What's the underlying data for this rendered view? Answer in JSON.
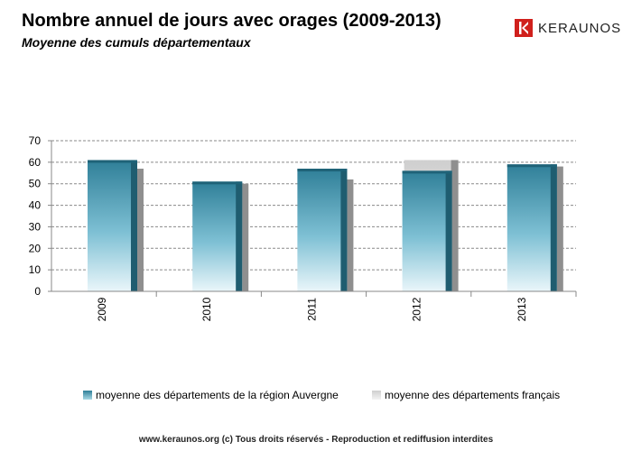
{
  "header": {
    "title": "Nombre annuel de jours avec orages (2009-2013)",
    "subtitle": "Moyenne des cumuls départementaux",
    "logo_text": "KERAUNOS"
  },
  "footer": {
    "text": "www.keraunos.org (c) Tous droits réservés - Reproduction et rediffusion interdites"
  },
  "colors": {
    "series1": "#3a8ea6",
    "series2": "#d6d6d6",
    "logo": "#d0201c",
    "grid": "#888888"
  },
  "chart_data": {
    "type": "bar",
    "title": "Nombre annuel de jours avec orages (2009-2013)",
    "subtitle": "Moyenne des cumuls départementaux",
    "categories": [
      "2009",
      "2010",
      "2011",
      "2012",
      "2013"
    ],
    "series": [
      {
        "name": "moyenne des départements de la région Auvergne",
        "values": [
          61,
          51,
          57,
          56,
          59
        ]
      },
      {
        "name": "moyenne des départements français",
        "values": [
          57,
          50,
          52,
          61,
          58
        ]
      }
    ],
    "ylim": [
      0,
      70
    ],
    "yticks": [
      0,
      10,
      20,
      30,
      40,
      50,
      60,
      70
    ],
    "grid": true,
    "legend_position": "bottom"
  }
}
